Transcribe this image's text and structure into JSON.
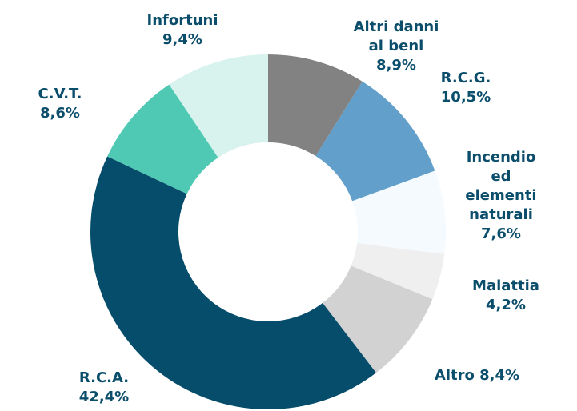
{
  "chart_data": {
    "type": "donut",
    "categories": [
      "Altri danni ai beni",
      "R.C.G.",
      "Incendio ed elementi naturali",
      "Malattia",
      "Altro",
      "R.C.A.",
      "C.V.T.",
      "Infortuni"
    ],
    "values": [
      8.9,
      10.5,
      7.6,
      4.2,
      8.4,
      42.4,
      8.6,
      9.4
    ],
    "value_labels": [
      "8,9%",
      "10,5%",
      "7,6%",
      "4,2%",
      "8,4%",
      "42,4%",
      "8,6%",
      "9,4%"
    ],
    "colors": [
      "#828282",
      "#62a0cb",
      "#f4fafd",
      "#efefef",
      "#d2d2d2",
      "#064d6c",
      "#50c9b4",
      "#d8f2ee"
    ]
  }
}
